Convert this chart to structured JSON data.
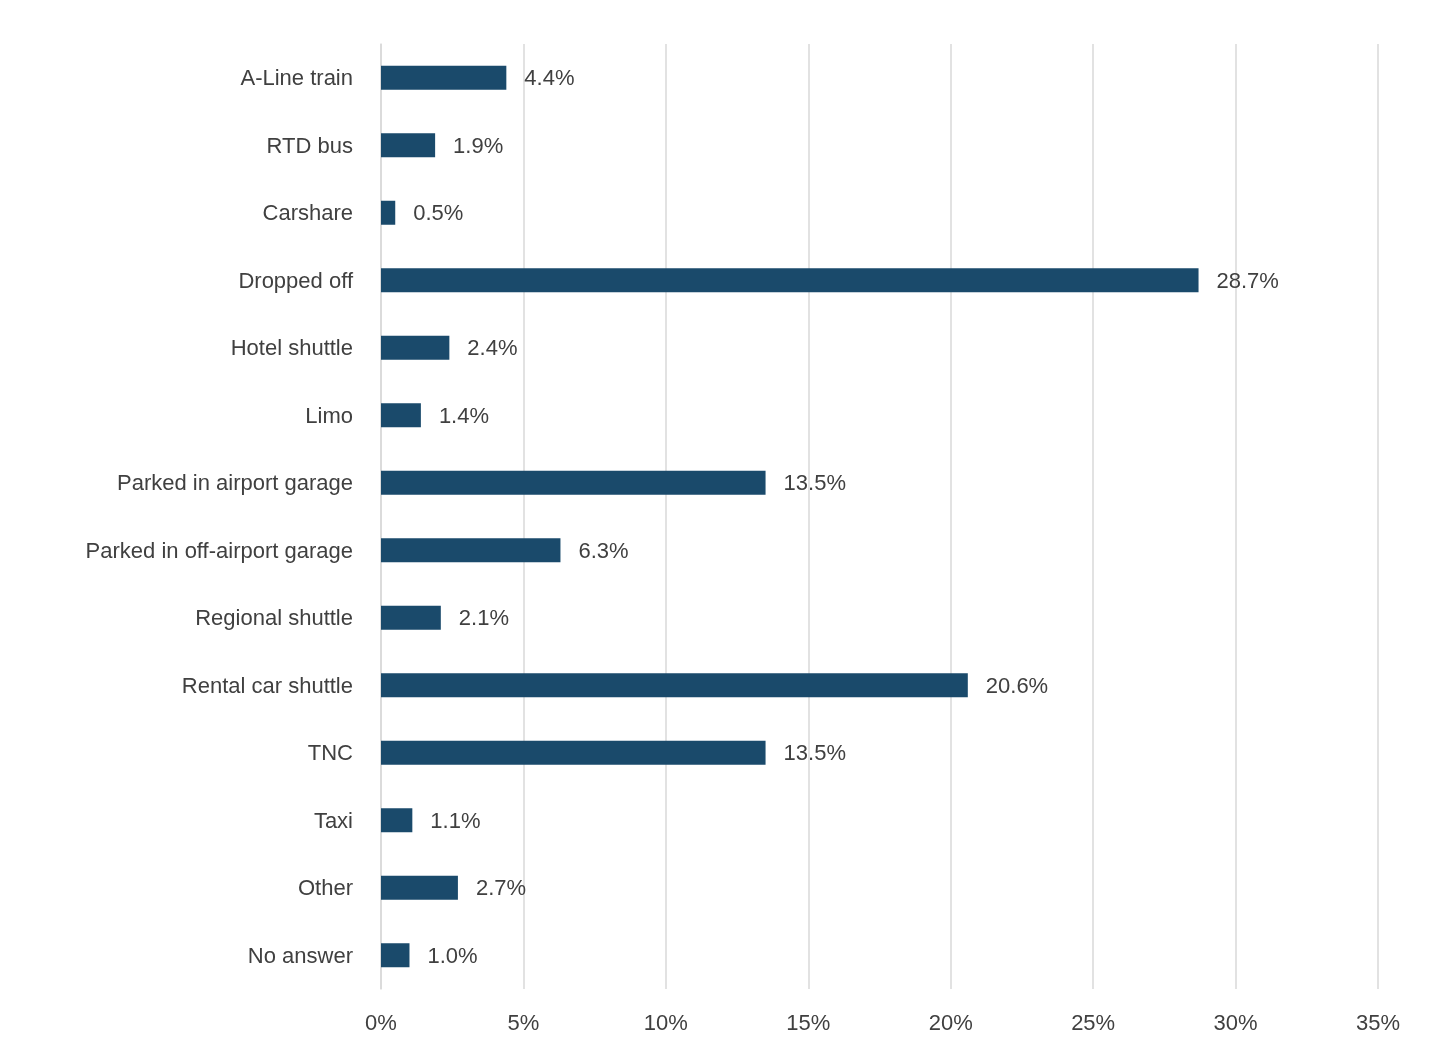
{
  "chart_data": {
    "type": "bar",
    "orientation": "horizontal",
    "categories": [
      "A-Line train",
      "RTD bus",
      "Carshare",
      "Dropped off",
      "Hotel shuttle",
      "Limo",
      "Parked in airport garage",
      "Parked in off-airport garage",
      "Regional shuttle",
      "Rental car shuttle",
      "TNC",
      "Taxi",
      "Other",
      "No answer"
    ],
    "values": [
      4.4,
      1.9,
      0.5,
      28.7,
      2.4,
      1.4,
      13.5,
      6.3,
      2.1,
      20.6,
      13.5,
      1.1,
      2.7,
      1.0
    ],
    "value_labels": [
      "4.4%",
      "1.9%",
      "0.5%",
      "28.7%",
      "2.4%",
      "1.4%",
      "13.5%",
      "6.3%",
      "2.1%",
      "20.6%",
      "13.5%",
      "1.1%",
      "2.7%",
      "1.0%"
    ],
    "color": "#1a4a6b",
    "xlim": [
      0,
      35
    ],
    "xticks": [
      {
        "value": 0,
        "label": "0%"
      },
      {
        "value": 5,
        "label": "5%"
      },
      {
        "value": 10,
        "label": "10%"
      },
      {
        "value": 15,
        "label": "15%"
      },
      {
        "value": 20,
        "label": "20%"
      },
      {
        "value": 25,
        "label": "25%"
      },
      {
        "value": 30,
        "label": "30%"
      },
      {
        "value": 35,
        "label": "35%"
      }
    ],
    "grid": "x"
  }
}
